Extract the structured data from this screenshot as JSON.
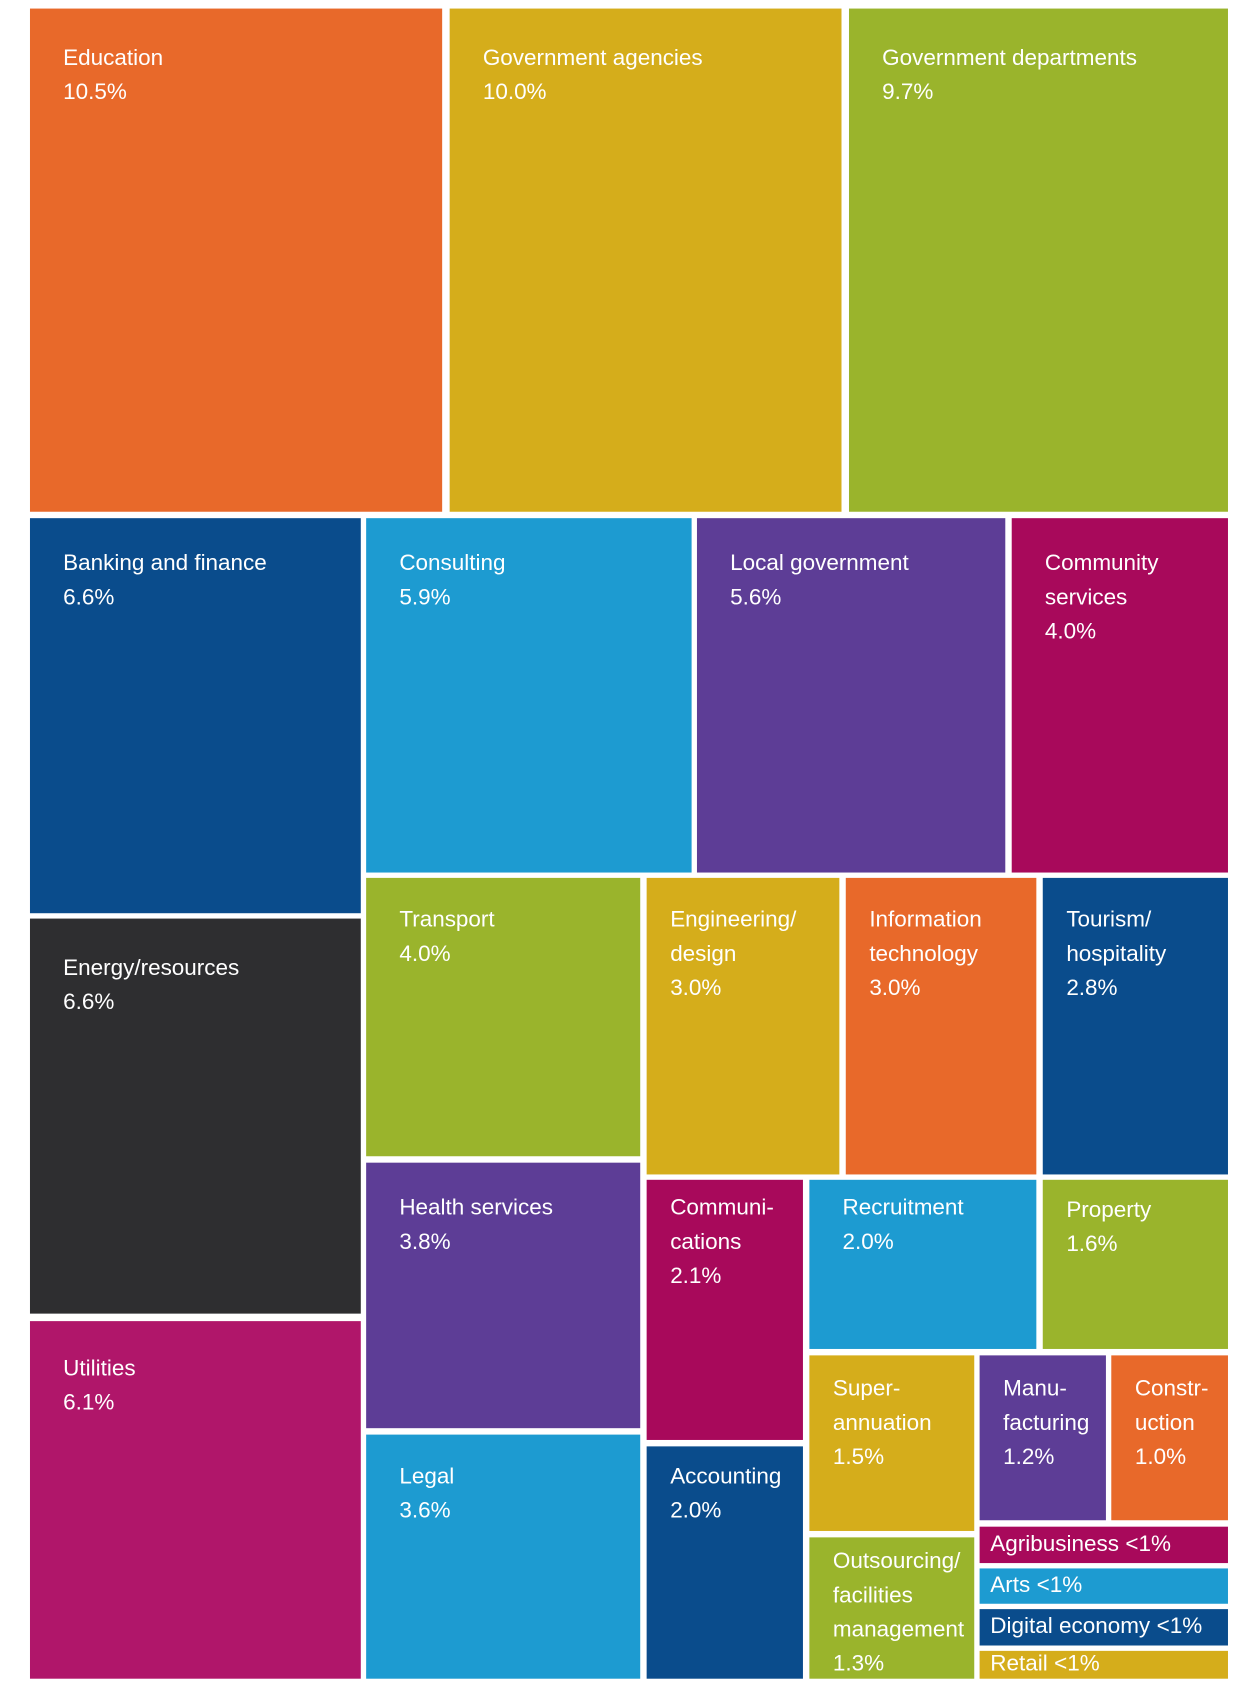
{
  "chart_data": {
    "type": "treemap",
    "categories": [
      "Education",
      "Government agencies",
      "Government departments",
      "Banking and finance",
      "Energy/resources",
      "Utilities",
      "Consulting",
      "Local government",
      "Community services",
      "Transport",
      "Engineering/design",
      "Information technology",
      "Tourism/hospitality",
      "Health services",
      "Legal",
      "Communi-cations",
      "Accounting",
      "Recruitment",
      "Property",
      "Super-annuation",
      "Manu-facturing",
      "Constr-uction",
      "Outsourcing/facilities management",
      "Agribusiness",
      "Arts",
      "Digital economy",
      "Retail"
    ],
    "values": [
      10.5,
      10.0,
      9.7,
      6.6,
      6.6,
      6.1,
      5.9,
      5.6,
      4.0,
      4.0,
      3.0,
      3.0,
      2.8,
      3.8,
      3.6,
      2.1,
      2.0,
      2.0,
      1.6,
      1.5,
      1.2,
      1.0,
      1.3,
      null,
      null,
      null,
      null
    ],
    "value_labels": [
      "10.5%",
      "10.0%",
      "9.7%",
      "6.6%",
      "6.6%",
      "6.1%",
      "5.9%",
      "5.6%",
      "4.0%",
      "4.0%",
      "3.0%",
      "3.0%",
      "2.8%",
      "3.8%",
      "3.6%",
      "2.1%",
      "2.0%",
      "2.0%",
      "1.6%",
      "1.5%",
      "1.2%",
      "1.0%",
      "1.3%",
      "<1%",
      "<1%",
      "<1%",
      "<1%"
    ],
    "colors": [
      "#e8692a",
      "#d5ad1b",
      "#9ab42c",
      "#0a4c8c",
      "#2e2e30",
      "#b0166a",
      "#1d9bd1",
      "#5d3d96",
      "#a8095b",
      "#9ab42c",
      "#d5ad1b",
      "#e8692a",
      "#0a4c8c",
      "#5d3d96",
      "#1d9bd1",
      "#a8095b",
      "#0a4c8c",
      "#1d9bd1",
      "#9ab42c",
      "#d5ad1b",
      "#5d3d96",
      "#e8692a",
      "#9ab42c",
      "#a8095b",
      "#1d9bd1",
      "#0a4c8c",
      "#d5ad1b"
    ]
  }
}
